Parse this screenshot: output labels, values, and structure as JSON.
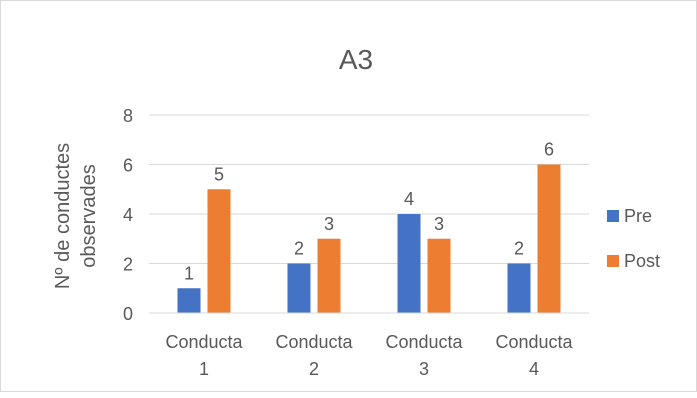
{
  "chart_data": {
    "type": "bar",
    "title": "A3",
    "ylabel": "Nº de conductes observades",
    "xlabel": "",
    "categories": [
      [
        "Conducta",
        "1"
      ],
      [
        "Conducta",
        "2"
      ],
      [
        "Conducta",
        "3"
      ],
      [
        "Conducta",
        "4"
      ]
    ],
    "series": [
      {
        "name": "Pre",
        "values": [
          1,
          2,
          4,
          2
        ],
        "color": "#4472C4"
      },
      {
        "name": "Post",
        "values": [
          5,
          3,
          3,
          6
        ],
        "color": "#ED7D31"
      }
    ],
    "ylim": [
      0,
      8
    ],
    "yticks": [
      0,
      2,
      4,
      6,
      8
    ],
    "grid": true,
    "legend_position": "right",
    "data_labels": true
  }
}
